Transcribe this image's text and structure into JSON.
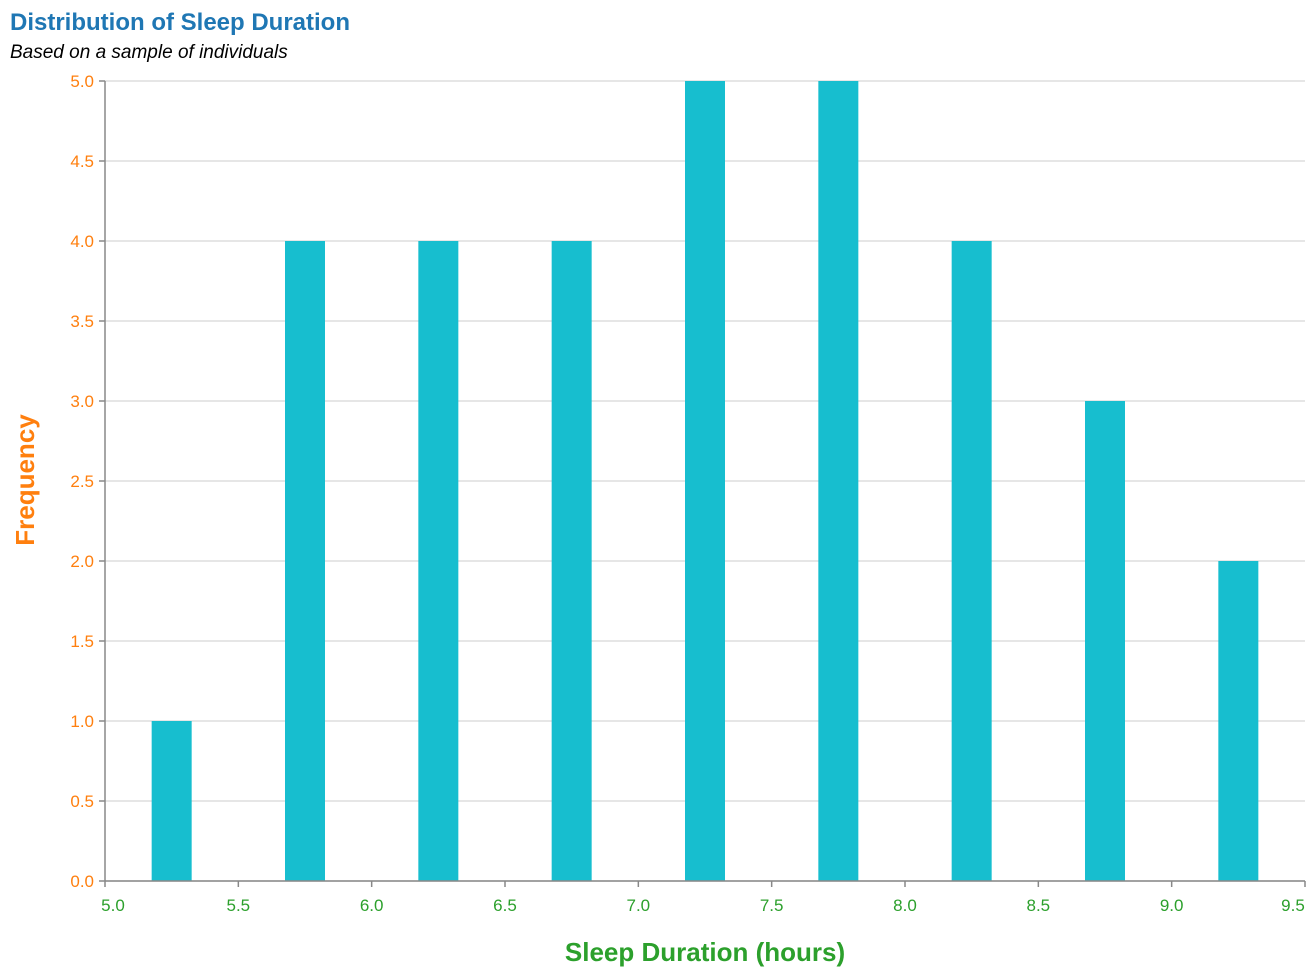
{
  "colors": {
    "title": "#1f77b4",
    "subtitle": "#000000",
    "bar": "#17becf",
    "x_axis_text": "#2ca02c",
    "y_axis_text": "#ff7f0e",
    "grid": "#dddddd",
    "axis": "#888888"
  },
  "chart_data": {
    "type": "bar",
    "title": "Distribution of Sleep Duration",
    "subtitle": "Based on a sample of individuals",
    "xlabel": "Sleep Duration (hours)",
    "ylabel": "Frequency",
    "xlim": [
      5.0,
      9.5
    ],
    "ylim": [
      0,
      5
    ],
    "x_ticks": [
      "5.0",
      "5.5",
      "6.0",
      "6.5",
      "7.0",
      "7.5",
      "8.0",
      "8.5",
      "9.0",
      "9.5"
    ],
    "y_ticks": [
      "0.0",
      "0.5",
      "1.0",
      "1.5",
      "2.0",
      "2.5",
      "3.0",
      "3.5",
      "4.0",
      "4.5",
      "5.0"
    ],
    "bins": [
      {
        "start": 5.0,
        "end": 5.5,
        "value": 1
      },
      {
        "start": 5.5,
        "end": 6.0,
        "value": 4
      },
      {
        "start": 6.0,
        "end": 6.5,
        "value": 4
      },
      {
        "start": 6.5,
        "end": 7.0,
        "value": 4
      },
      {
        "start": 7.0,
        "end": 7.5,
        "value": 5
      },
      {
        "start": 7.5,
        "end": 8.0,
        "value": 5
      },
      {
        "start": 8.0,
        "end": 8.5,
        "value": 4
      },
      {
        "start": 8.5,
        "end": 9.0,
        "value": 3
      },
      {
        "start": 9.0,
        "end": 9.5,
        "value": 2
      }
    ],
    "grid": true
  }
}
